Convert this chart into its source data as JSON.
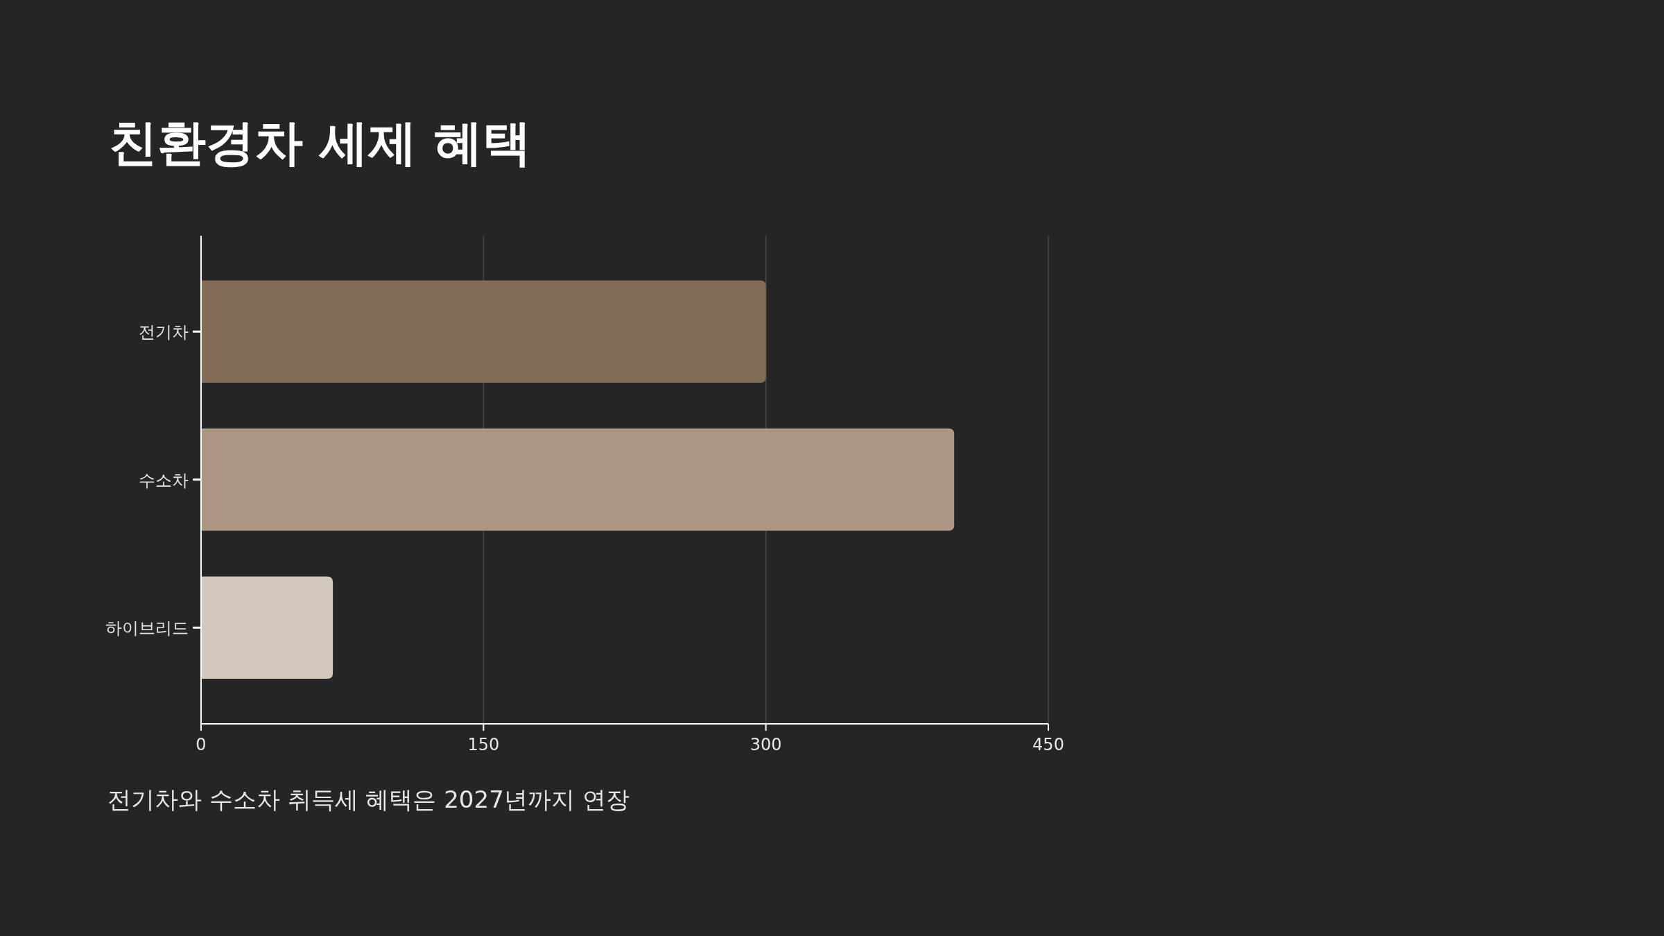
{
  "chart_data": {
    "type": "bar",
    "orientation": "horizontal",
    "title": "친환경차 세제 혜택",
    "categories": [
      "전기차",
      "수소차",
      "하이브리드"
    ],
    "values": [
      300,
      400,
      70
    ],
    "colors": [
      "#826d57",
      "#ab9784",
      "#d2c8bc"
    ],
    "xlim": [
      0,
      450
    ],
    "xticks": [
      0,
      150,
      300,
      450
    ],
    "grid": "x",
    "annotations": [
      "전기차와 수소차 취득세 혜택은 2027년까지 연장"
    ]
  }
}
